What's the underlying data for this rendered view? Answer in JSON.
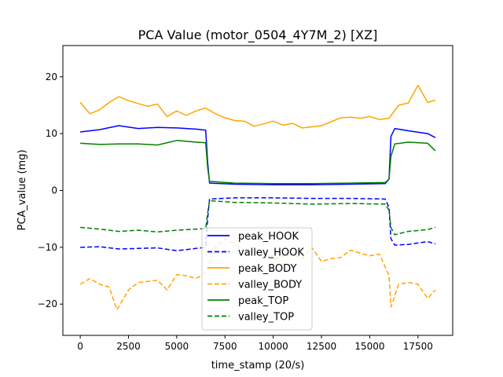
{
  "chart_data": {
    "type": "line",
    "title": "PCA Value (motor_0504_4Y7M_2) [XZ]",
    "xlabel": "time_stamp (20/s)",
    "ylabel": "PCA_value (mg)",
    "xlim": [
      -900,
      19300
    ],
    "ylim": [
      -25.5,
      25.5
    ],
    "xticks": [
      0,
      2500,
      5000,
      7500,
      10000,
      12500,
      15000,
      17500
    ],
    "xtick_labels": [
      "0",
      "2500",
      "5000",
      "7500",
      "10000",
      "12500",
      "15000",
      "17500"
    ],
    "yticks": [
      -20,
      -10,
      0,
      10,
      20
    ],
    "ytick_labels": [
      "−20",
      "−10",
      "0",
      "10",
      "20"
    ],
    "grid": false,
    "legend_position": "lower-center",
    "series": [
      {
        "name": "peak_HOOK",
        "color": "#0000ff",
        "style": "solid",
        "x": [
          0,
          1000,
          2000,
          3000,
          4000,
          5000,
          6000,
          6500,
          6600,
          6700,
          8000,
          10000,
          12000,
          14000,
          15800,
          16000,
          16100,
          16300,
          17000,
          18000,
          18400
        ],
        "y": [
          10.3,
          10.7,
          11.4,
          10.9,
          11.1,
          11.0,
          10.8,
          10.6,
          5.0,
          1.3,
          1.1,
          1.0,
          1.0,
          1.1,
          1.2,
          2.0,
          9.5,
          10.9,
          10.5,
          10.0,
          9.3
        ]
      },
      {
        "name": "valley_HOOK",
        "color": "#0000ff",
        "style": "dashed",
        "x": [
          0,
          1000,
          2000,
          3000,
          4000,
          5000,
          6000,
          6500,
          6600,
          6700,
          8000,
          10000,
          12000,
          14000,
          15800,
          16000,
          16100,
          16300,
          17000,
          18000,
          18400
        ],
        "y": [
          -10.0,
          -9.9,
          -10.3,
          -10.2,
          -10.1,
          -10.6,
          -10.2,
          -10.0,
          -5.0,
          -1.5,
          -1.3,
          -1.3,
          -1.4,
          -1.4,
          -1.5,
          -3.0,
          -8.5,
          -9.6,
          -9.5,
          -9.0,
          -9.4
        ]
      },
      {
        "name": "peak_BODY",
        "color": "#ffa500",
        "style": "solid",
        "x": [
          0,
          500,
          1000,
          1500,
          2000,
          2500,
          3000,
          3500,
          4000,
          4500,
          5000,
          5500,
          6000,
          6500,
          7000,
          7500,
          8000,
          8500,
          9000,
          9500,
          10000,
          10500,
          11000,
          11500,
          12000,
          12500,
          13000,
          13500,
          14000,
          14500,
          15000,
          15500,
          16000,
          16500,
          17000,
          17500,
          18000,
          18400
        ],
        "y": [
          15.5,
          13.5,
          14.2,
          15.5,
          16.5,
          15.8,
          15.3,
          14.8,
          15.2,
          13.0,
          14.0,
          13.2,
          14.0,
          14.5,
          13.5,
          12.8,
          12.3,
          12.2,
          11.3,
          11.7,
          12.2,
          11.5,
          11.8,
          11.0,
          11.2,
          11.4,
          12.1,
          12.8,
          12.9,
          12.7,
          13.0,
          12.5,
          12.7,
          15.0,
          15.4,
          18.5,
          15.5,
          15.9
        ]
      },
      {
        "name": "valley_BODY",
        "color": "#ffa500",
        "style": "dashed",
        "x": [
          0,
          500,
          1000,
          1500,
          1900,
          2500,
          3000,
          3500,
          4000,
          4500,
          5000,
          5500,
          6000,
          6500,
          7000,
          7500,
          8000,
          8500,
          9000,
          9500,
          10000,
          10500,
          11000,
          11500,
          12000,
          12500,
          13000,
          13500,
          14000,
          14500,
          15000,
          15500,
          16000,
          16100,
          16500,
          17000,
          17500,
          18000,
          18400
        ],
        "y": [
          -16.5,
          -15.5,
          -16.5,
          -17.0,
          -21.0,
          -17.5,
          -16.2,
          -16.0,
          -15.8,
          -17.5,
          -14.8,
          -15.0,
          -15.5,
          -14.5,
          -10.0,
          -8.5,
          -9.5,
          -10.5,
          -10.8,
          -11.0,
          -12.2,
          -11.5,
          -11.3,
          -12.0,
          -10.0,
          -12.5,
          -12.0,
          -11.8,
          -10.5,
          -11.0,
          -11.5,
          -11.2,
          -15.0,
          -20.5,
          -16.5,
          -16.2,
          -16.5,
          -19.0,
          -17.5
        ]
      },
      {
        "name": "peak_TOP",
        "color": "#008000",
        "style": "solid",
        "x": [
          0,
          1000,
          2000,
          3000,
          4000,
          5000,
          6000,
          6500,
          6600,
          6700,
          8000,
          10000,
          12000,
          14000,
          15800,
          16000,
          16100,
          16300,
          17000,
          18000,
          18400
        ],
        "y": [
          8.3,
          8.1,
          8.2,
          8.2,
          8.0,
          8.8,
          8.5,
          8.4,
          4.0,
          1.6,
          1.3,
          1.2,
          1.2,
          1.3,
          1.4,
          2.0,
          6.0,
          8.2,
          8.5,
          8.3,
          7.0
        ]
      },
      {
        "name": "valley_TOP",
        "color": "#008000",
        "style": "dashed",
        "x": [
          0,
          1000,
          2000,
          3000,
          4000,
          5000,
          6000,
          6500,
          6600,
          6700,
          8000,
          10000,
          12000,
          14000,
          15800,
          16000,
          16100,
          16300,
          17000,
          18000,
          18400
        ],
        "y": [
          -6.5,
          -6.8,
          -7.2,
          -7.0,
          -7.3,
          -7.0,
          -6.8,
          -6.7,
          -4.0,
          -1.8,
          -2.1,
          -2.2,
          -2.4,
          -2.3,
          -2.4,
          -3.5,
          -6.5,
          -7.8,
          -7.2,
          -6.9,
          -6.5
        ]
      }
    ]
  }
}
